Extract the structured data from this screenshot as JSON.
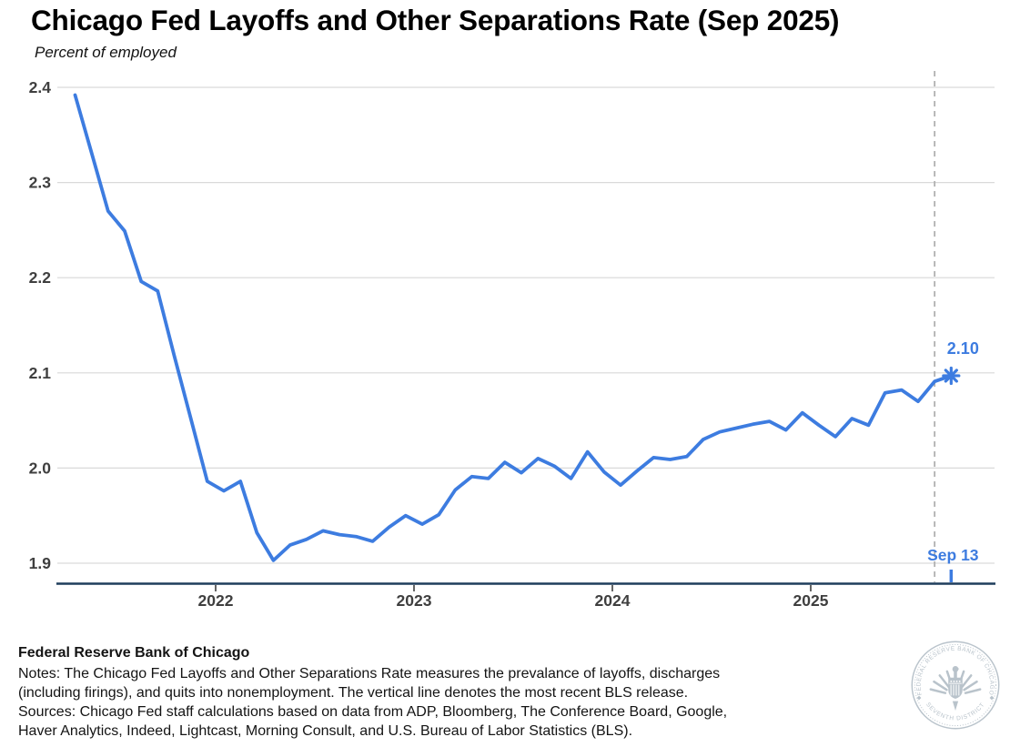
{
  "title": "Chicago Fed Layoffs and Other Separations Rate (Sep 2025)",
  "subtitle": "Percent of employed",
  "colors": {
    "line": "#3d7ce0",
    "axis": "#1f3d5c",
    "grid": "#d9d9d9",
    "dashed_line": "#b0b0b0",
    "tick_label": "#3f3f3f",
    "annotation": "#3d7ce0",
    "seal": "#b9c3cb"
  },
  "chart_data": {
    "type": "line",
    "title": "Chicago Fed Layoffs and Other Separations Rate (Sep 2025)",
    "ylabel": "Percent of employed",
    "ylim": [
      1.88,
      2.42
    ],
    "grid": "horizontal",
    "legend_position": "none",
    "y_tick_labels": [
      "2.4",
      "2.3",
      "2.2",
      "2.1",
      "2.0",
      "1.9"
    ],
    "x_tick_labels": [
      "2022",
      "2023",
      "2024",
      "2025"
    ],
    "x": [
      "2021-04",
      "2021-05",
      "2021-06",
      "2021-07",
      "2021-08",
      "2021-09",
      "2021-10",
      "2021-11",
      "2021-12",
      "2022-01",
      "2022-02",
      "2022-03",
      "2022-04",
      "2022-05",
      "2022-06",
      "2022-07",
      "2022-08",
      "2022-09",
      "2022-10",
      "2022-11",
      "2022-12",
      "2023-01",
      "2023-02",
      "2023-03",
      "2023-04",
      "2023-05",
      "2023-06",
      "2023-07",
      "2023-08",
      "2023-09",
      "2023-10",
      "2023-11",
      "2023-12",
      "2024-01",
      "2024-02",
      "2024-03",
      "2024-04",
      "2024-05",
      "2024-06",
      "2024-07",
      "2024-08",
      "2024-09",
      "2024-10",
      "2024-11",
      "2024-12",
      "2025-01",
      "2025-02",
      "2025-03",
      "2025-04",
      "2025-05",
      "2025-06",
      "2025-07",
      "2025-08",
      "2025-09"
    ],
    "series": [
      {
        "name": "Layoffs and Other Separations Rate",
        "values": [
          2.392,
          2.331,
          2.27,
          2.249,
          2.196,
          2.186,
          2.118,
          2.052,
          1.986,
          1.976,
          1.986,
          1.932,
          1.903,
          1.919,
          1.925,
          1.934,
          1.93,
          1.928,
          1.923,
          1.938,
          1.95,
          1.941,
          1.951,
          1.977,
          1.991,
          1.989,
          2.006,
          1.995,
          2.01,
          2.002,
          1.989,
          2.017,
          1.996,
          1.982,
          1.997,
          2.011,
          2.009,
          2.012,
          2.03,
          2.038,
          2.042,
          2.046,
          2.049,
          2.04,
          2.058,
          2.045,
          2.033,
          2.052,
          2.045,
          2.079,
          2.082,
          2.07,
          2.091,
          2.097
        ]
      }
    ],
    "last_point": {
      "x": "2025-09",
      "value": 2.1,
      "label": "2.10",
      "marker": "asterisk"
    },
    "vertical_dashed_line": {
      "x": "2025-08"
    },
    "latest_week_tick": {
      "x": "2025-09",
      "label": "Sep 13"
    }
  },
  "footer": {
    "org": "Federal Reserve Bank of Chicago",
    "notes_line1": "Notes: The Chicago Fed Layoffs and Other Separations Rate measures the prevalance of layoffs, discharges",
    "notes_line2": "(including firings), and quits into nonemployment. The vertical line denotes the most recent BLS release.",
    "sources_line1": "Sources: Chicago Fed staff calculations based on data from ADP, Bloomberg, The Conference Board, Google,",
    "sources_line2": "Haver Analytics, Indeed, Lightcast, Morning Consult, and U.S. Bureau of Labor Statistics (BLS).",
    "seal_text_top": "FEDERAL RESERVE BANK OF CHICAGO",
    "seal_text_bottom": "SEVENTH DISTRICT"
  }
}
